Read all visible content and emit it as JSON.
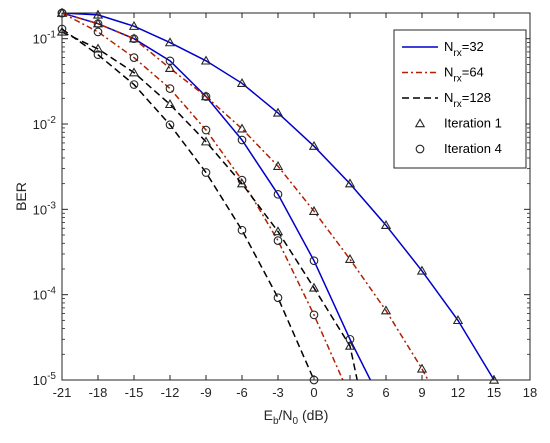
{
  "chart_data": {
    "type": "line",
    "title": "",
    "xlabel": {
      "main": "E",
      "sub": "b",
      "mid": "/N",
      "sub2": "0",
      "rest": " (dB)"
    },
    "ylabel": "BER",
    "xlim": [
      -21,
      18
    ],
    "ylim": [
      1e-05,
      0.2
    ],
    "yscale": "log",
    "xticks": [
      -21,
      -18,
      -15,
      -12,
      -9,
      -6,
      -3,
      0,
      3,
      6,
      9,
      12,
      15,
      18
    ],
    "yticks": [
      {
        "value": 1e-05,
        "base": "10",
        "exp": "-5"
      },
      {
        "value": 0.0001,
        "base": "10",
        "exp": "-4"
      },
      {
        "value": 0.001,
        "base": "10",
        "exp": "-3"
      },
      {
        "value": 0.01,
        "base": "10",
        "exp": "-2"
      },
      {
        "value": 0.1,
        "base": "10",
        "exp": "-1"
      }
    ],
    "grid": false,
    "legend_position": "top-right",
    "legend": [
      {
        "kind": "line",
        "label_main": "N",
        "label_sub": "rx",
        "label_rest": "=32",
        "color": "#0000cc",
        "dash": ""
      },
      {
        "kind": "line",
        "label_main": "N",
        "label_sub": "rx",
        "label_rest": "=64",
        "color": "#b22000",
        "dash": "6,3,2,3"
      },
      {
        "kind": "line",
        "label_main": "N",
        "label_sub": "rx",
        "label_rest": "=128",
        "color": "#000000",
        "dash": "7,4"
      },
      {
        "kind": "marker",
        "marker": "triangle",
        "label": "Iteration 1"
      },
      {
        "kind": "marker",
        "marker": "circle",
        "label": "Iteration 4"
      }
    ],
    "series": [
      {
        "id": "nrx32-it1",
        "color": "#0000cc",
        "dash": "",
        "marker": "triangle",
        "x": [
          -21,
          -18,
          -15,
          -12,
          -9,
          -6,
          -3,
          0,
          3,
          6,
          9,
          12,
          15
        ],
        "y": [
          0.2,
          0.19,
          0.14,
          0.09,
          0.055,
          0.03,
          0.0135,
          0.0055,
          0.002,
          0.00065,
          0.00019,
          5e-05,
          1e-05
        ]
      },
      {
        "id": "nrx32-it4",
        "color": "#0000cc",
        "dash": "",
        "marker": "circle",
        "x": [
          -21,
          -18,
          -15,
          -12,
          -9,
          -6,
          -3,
          0,
          3,
          4.7
        ],
        "y": [
          0.2,
          0.15,
          0.1,
          0.055,
          0.021,
          0.0065,
          0.0015,
          0.00025,
          3e-05,
          1e-05
        ]
      },
      {
        "id": "nrx64-it1",
        "color": "#b22000",
        "dash": "6,3,2,3",
        "marker": "triangle",
        "x": [
          -21,
          -18,
          -15,
          -12,
          -9,
          -6,
          -3,
          0,
          3,
          6,
          9,
          9.5
        ],
        "y": [
          0.2,
          0.15,
          0.1,
          0.045,
          0.021,
          0.0088,
          0.0032,
          0.00095,
          0.00026,
          6.5e-05,
          1.35e-05,
          1e-05
        ]
      },
      {
        "id": "nrx64-it4",
        "color": "#b22000",
        "dash": "6,3,2,3",
        "marker": "circle",
        "x": [
          -21,
          -18,
          -15,
          -12,
          -9,
          -6,
          -3,
          0,
          2.4
        ],
        "y": [
          0.2,
          0.12,
          0.06,
          0.026,
          0.0085,
          0.0022,
          0.00043,
          5.8e-05,
          1e-05
        ]
      },
      {
        "id": "nrx128-it1",
        "color": "#000000",
        "dash": "7,4",
        "marker": "triangle",
        "x": [
          -21,
          -18,
          -15,
          -12,
          -9,
          -6,
          -3,
          0,
          3,
          3.6
        ],
        "y": [
          0.12,
          0.076,
          0.04,
          0.017,
          0.0062,
          0.002,
          0.00055,
          0.00012,
          2.5e-05,
          1e-05
        ]
      },
      {
        "id": "nrx128-it4",
        "color": "#000000",
        "dash": "7,4",
        "marker": "circle",
        "x": [
          -21,
          -18,
          -15,
          -12,
          -9,
          -6,
          -3,
          0
        ],
        "y": [
          0.13,
          0.065,
          0.029,
          0.0098,
          0.0027,
          0.00057,
          9.2e-05,
          1e-05
        ]
      }
    ]
  }
}
